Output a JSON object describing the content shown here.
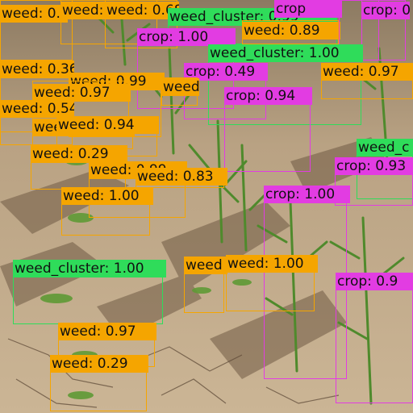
{
  "image": {
    "description_icon": "field-photo",
    "colors": {
      "weed": "#f5a500",
      "crop": "#e23ce2",
      "weed_cluster": "#2fdc5a",
      "soil_light": "#c9b597",
      "soil_dark": "#6f5a44",
      "plant": "#5f9a35"
    }
  },
  "detections": [
    {
      "class": "weed",
      "label": "weed: 0.97"
    },
    {
      "class": "weed",
      "label": "weed: 0.78"
    },
    {
      "class": "weed",
      "label": "weed: 0.68"
    },
    {
      "class": "weed_cluster",
      "label": "weed_cluster: 0.99"
    },
    {
      "class": "crop",
      "label": "crop: 1.00"
    },
    {
      "class": "weed",
      "label": "weed: 0.89"
    },
    {
      "class": "crop",
      "label": "crop"
    },
    {
      "class": "crop",
      "label": "crop: 0"
    },
    {
      "class": "weed_cluster",
      "label": "weed_cluster: 1.00"
    },
    {
      "class": "weed",
      "label": "weed: 0.36"
    },
    {
      "class": "crop",
      "label": "crop: 0.49"
    },
    {
      "class": "weed",
      "label": "weed: 0.97"
    },
    {
      "class": "weed",
      "label": "weed: 0.99"
    },
    {
      "class": "weed",
      "label": "weed: 0.91"
    },
    {
      "class": "weed",
      "label": "weed: 0.97"
    },
    {
      "class": "crop",
      "label": "crop: 0.94"
    },
    {
      "class": "weed",
      "label": "weed: 0.54"
    },
    {
      "class": "weed",
      "label": "weed: 0.94"
    },
    {
      "class": "weed",
      "label": "weed: 0.94"
    },
    {
      "class": "weed_cluster",
      "label": "weed_c"
    },
    {
      "class": "weed",
      "label": "weed: 0.29"
    },
    {
      "class": "weed",
      "label": "weed: 0.99"
    },
    {
      "class": "weed",
      "label": "weed: 0.83"
    },
    {
      "class": "crop",
      "label": "crop: 0.93"
    },
    {
      "class": "weed",
      "label": "weed: 1.00"
    },
    {
      "class": "crop",
      "label": "crop: 1.00"
    },
    {
      "class": "weed_cluster",
      "label": "weed_cluster: 1.00"
    },
    {
      "class": "weed",
      "label": "weed"
    },
    {
      "class": "weed",
      "label": "weed: 1.00"
    },
    {
      "class": "crop",
      "label": "crop: 0.9"
    },
    {
      "class": "weed",
      "label": "weed: 0.97"
    },
    {
      "class": "weed",
      "label": "weed: 0.29"
    }
  ]
}
